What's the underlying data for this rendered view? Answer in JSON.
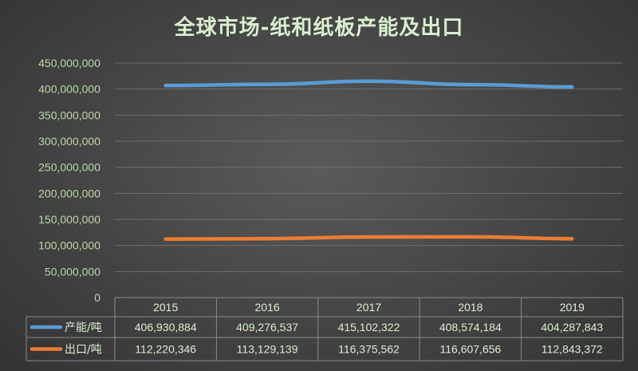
{
  "chart_data": {
    "type": "line",
    "title": "全球市场-纸和纸板产能及出口",
    "categories": [
      "2015",
      "2016",
      "2017",
      "2018",
      "2019"
    ],
    "ylim": [
      0,
      450000000
    ],
    "yticks": [
      "450,000,000",
      "400,000,000",
      "350,000,000",
      "300,000,000",
      "250,000,000",
      "200,000,000",
      "150,000,000",
      "100,000,000",
      "50,000,000",
      "0"
    ],
    "grid": true,
    "legend": "data-table",
    "series": [
      {
        "name": "产能/吨",
        "color": "#5b9bd5",
        "values": [
          406930884,
          409276537,
          415102322,
          408574184,
          404287843
        ],
        "labels": [
          "406,930,884",
          "409,276,537",
          "415,102,322",
          "408,574,184",
          "404,287,843"
        ]
      },
      {
        "name": "出口/吨",
        "color": "#ed7d31",
        "values": [
          112220346,
          113129139,
          116375562,
          116607656,
          112843372
        ],
        "labels": [
          "112,220,346",
          "113,129,139",
          "116,375,562",
          "116,607,656",
          "112,843,372"
        ]
      }
    ]
  }
}
